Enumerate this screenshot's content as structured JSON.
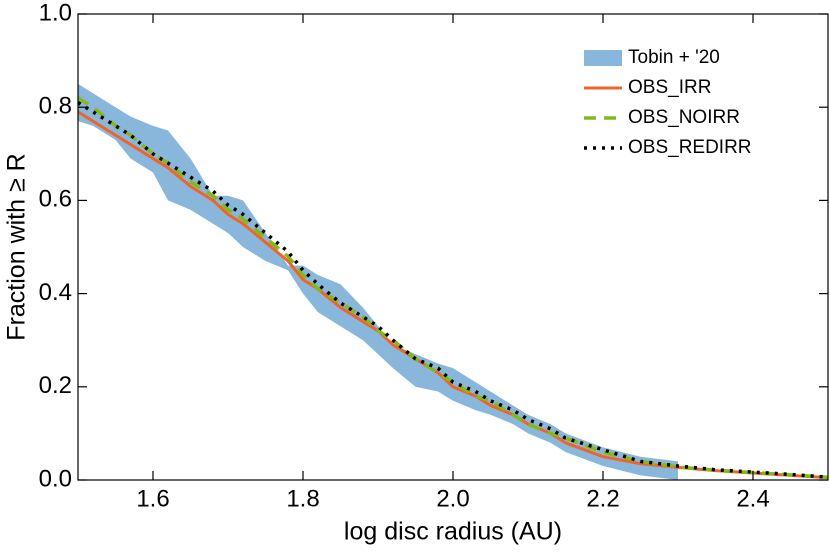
{
  "chart_data": {
    "type": "line",
    "x_label": "log disc radius (AU)",
    "y_label": "Fraction with ≥ R",
    "x": [
      1.5,
      1.52,
      1.55,
      1.57,
      1.6,
      1.62,
      1.65,
      1.68,
      1.7,
      1.72,
      1.75,
      1.78,
      1.8,
      1.82,
      1.85,
      1.88,
      1.9,
      1.92,
      1.95,
      1.98,
      2.0,
      2.03,
      2.05,
      2.08,
      2.1,
      2.13,
      2.15,
      2.2,
      2.25,
      2.3,
      2.35,
      2.4,
      2.45,
      2.5
    ],
    "band": {
      "name": "Tobin + '20",
      "color": "#89b7db",
      "upper": [
        0.85,
        0.83,
        0.8,
        0.78,
        0.76,
        0.75,
        0.69,
        0.61,
        0.61,
        0.6,
        0.53,
        0.46,
        0.46,
        0.44,
        0.42,
        0.37,
        0.33,
        0.29,
        0.27,
        0.25,
        0.24,
        0.21,
        0.19,
        0.16,
        0.14,
        0.12,
        0.1,
        0.07,
        0.05,
        0.04,
        null,
        null,
        null,
        null
      ],
      "lower": [
        0.77,
        0.76,
        0.73,
        0.69,
        0.66,
        0.6,
        0.58,
        0.55,
        0.53,
        0.5,
        0.47,
        0.45,
        0.4,
        0.36,
        0.33,
        0.3,
        0.27,
        0.24,
        0.2,
        0.19,
        0.17,
        0.15,
        0.14,
        0.12,
        0.1,
        0.08,
        0.06,
        0.03,
        0.01,
        0.0,
        null,
        null,
        null,
        null
      ]
    },
    "series": [
      {
        "name": "OBS_IRR",
        "color": "#f0642a",
        "style": "solid",
        "values": [
          0.79,
          0.77,
          0.74,
          0.72,
          0.69,
          0.67,
          0.63,
          0.6,
          0.57,
          0.55,
          0.51,
          0.47,
          0.43,
          0.41,
          0.37,
          0.34,
          0.32,
          0.29,
          0.26,
          0.23,
          0.2,
          0.18,
          0.16,
          0.14,
          0.12,
          0.1,
          0.08,
          0.05,
          0.035,
          0.027,
          0.02,
          0.015,
          0.01,
          0.005
        ]
      },
      {
        "name": "OBS_NOIRR",
        "color": "#86b916",
        "style": "dashed",
        "values": [
          0.82,
          0.8,
          0.76,
          0.74,
          0.7,
          0.68,
          0.64,
          0.61,
          0.58,
          0.56,
          0.52,
          0.48,
          0.44,
          0.41,
          0.38,
          0.35,
          0.32,
          0.3,
          0.26,
          0.23,
          0.21,
          0.18,
          0.17,
          0.14,
          0.12,
          0.1,
          0.09,
          0.06,
          0.04,
          0.028,
          0.021,
          0.016,
          0.011,
          0.006
        ]
      },
      {
        "name": "OBS_REDIRR",
        "color": "#000000",
        "style": "dotted",
        "values": [
          0.81,
          0.79,
          0.76,
          0.74,
          0.7,
          0.68,
          0.65,
          0.62,
          0.59,
          0.57,
          0.53,
          0.49,
          0.45,
          0.42,
          0.38,
          0.35,
          0.33,
          0.3,
          0.26,
          0.24,
          0.21,
          0.19,
          0.17,
          0.15,
          0.13,
          0.11,
          0.09,
          0.065,
          0.04,
          0.03,
          0.022,
          0.017,
          0.012,
          0.006
        ]
      }
    ],
    "xlim": [
      1.5,
      2.5
    ],
    "ylim": [
      0,
      1
    ],
    "xticks": [
      1.6,
      1.8,
      {
        "value": 2,
        "label": "2.0"
      },
      2.2,
      2.4
    ],
    "yticks": [
      {
        "value": 0,
        "label": "0.0"
      },
      0.2,
      0.4,
      0.6,
      0.8,
      {
        "value": 1,
        "label": "1.0"
      }
    ],
    "legend": "upper right"
  }
}
